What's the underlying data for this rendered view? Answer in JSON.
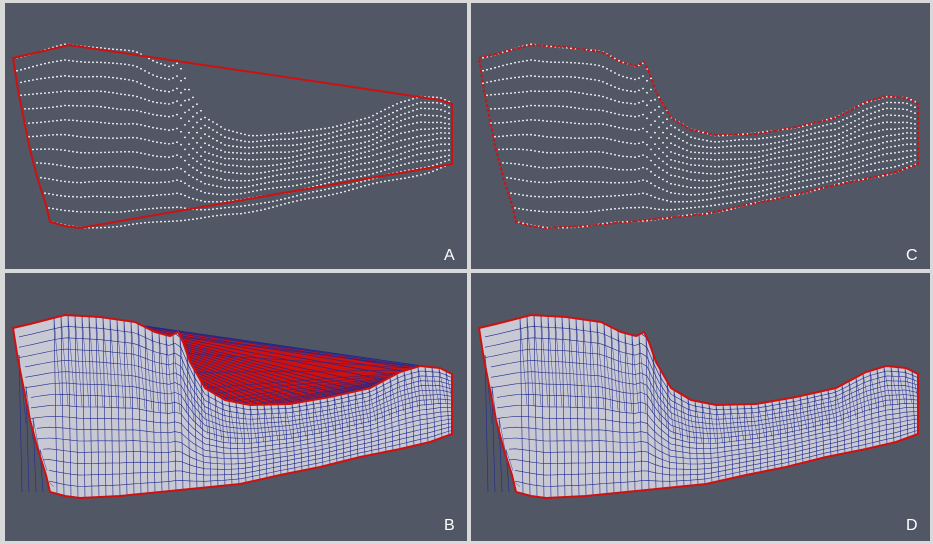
{
  "figure": {
    "background_color": "#525766",
    "divider_color": "#d9d9d9",
    "boundary_color": "#cc1111",
    "point_color": "#ffffff",
    "mesh_edge_color": "#1f2a8c",
    "mesh_fill_color": "#c9c9d4",
    "panels": [
      {
        "id": "A",
        "label": "A",
        "content": "point-cloud-convex-hull"
      },
      {
        "id": "B",
        "label": "B",
        "content": "mesh-convex-hull-triangulation"
      },
      {
        "id": "C",
        "label": "C",
        "content": "point-cloud-concave-boundary"
      },
      {
        "id": "D",
        "label": "D",
        "content": "mesh-concave-boundary-triangulation"
      }
    ]
  }
}
